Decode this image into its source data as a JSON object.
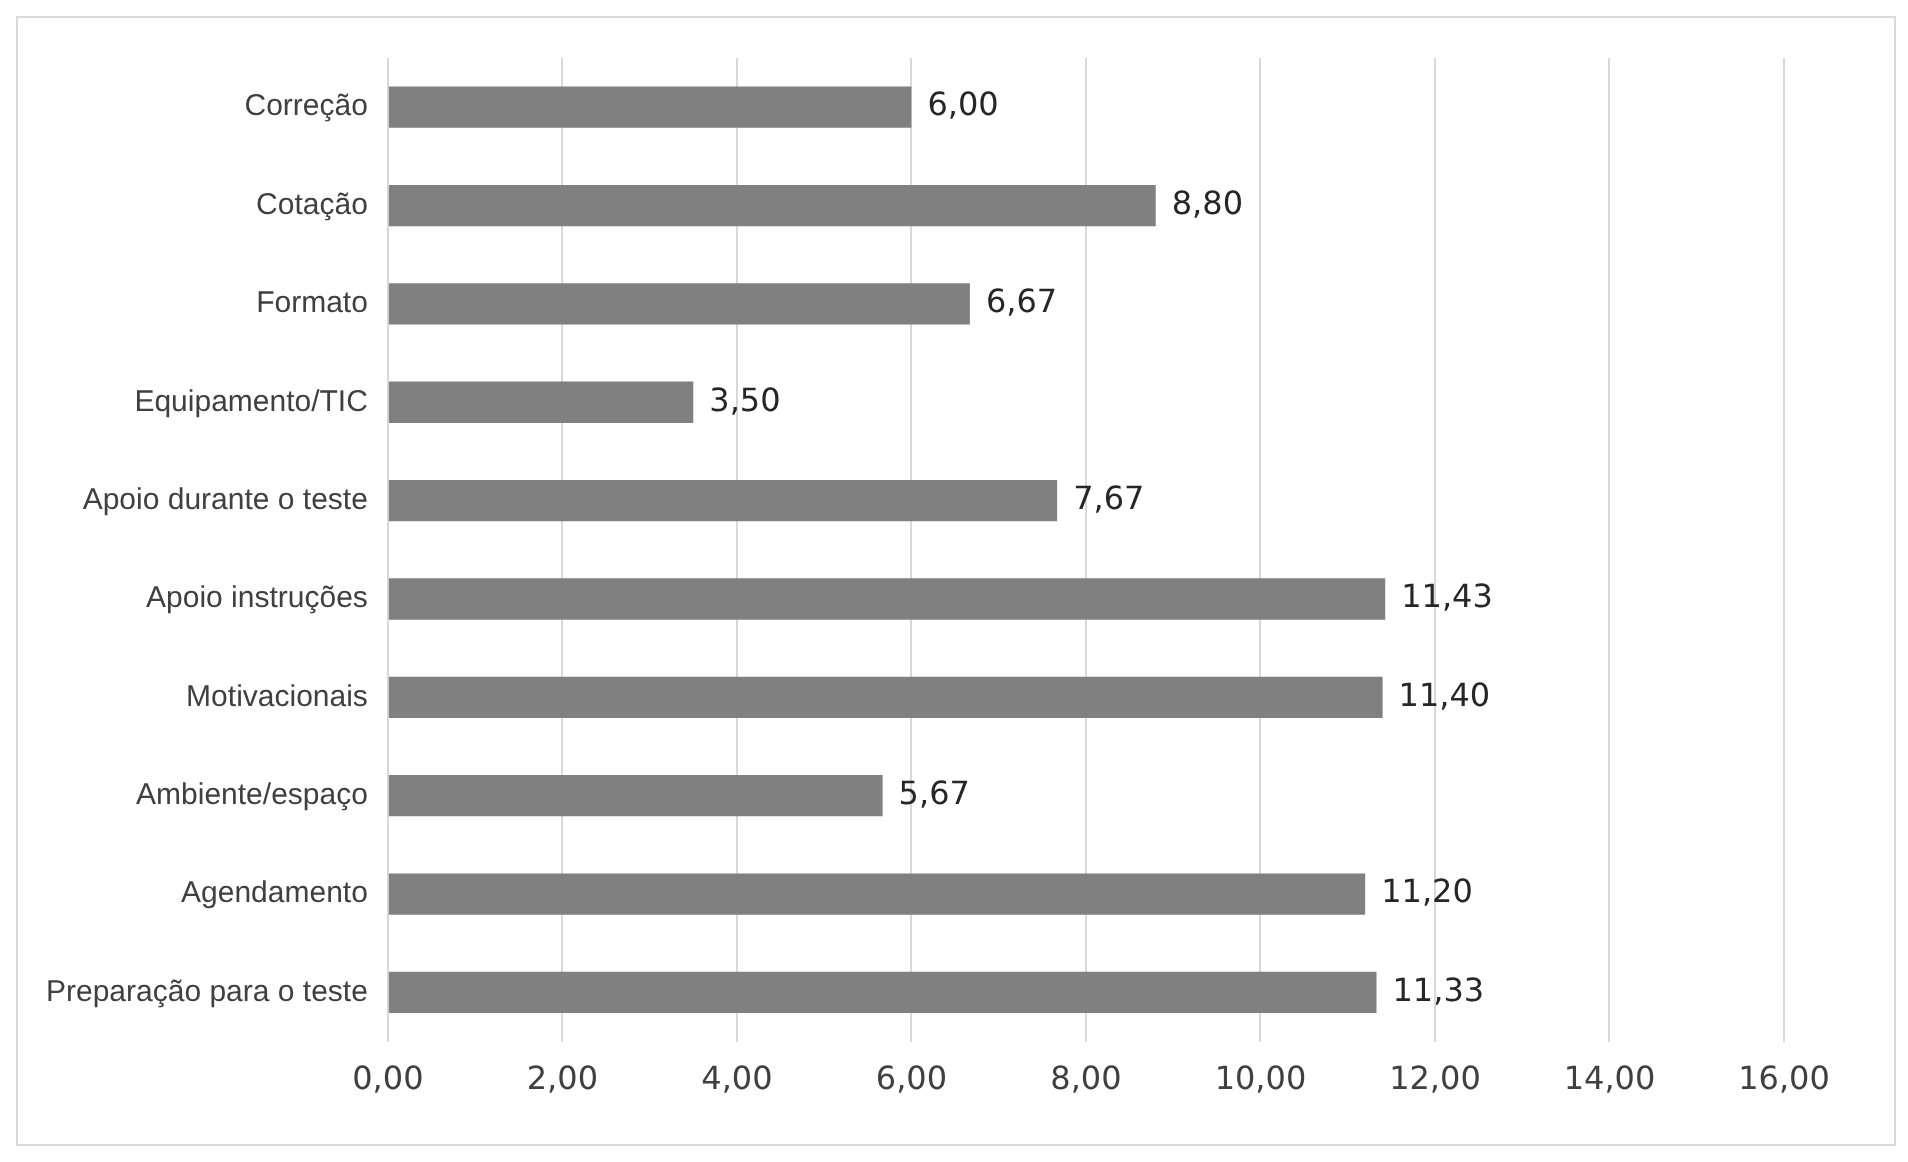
{
  "chart_data": {
    "type": "bar",
    "orientation": "horizontal",
    "categories": [
      "Correção",
      "Cotação",
      "Formato",
      "Equipamento/TIC",
      "Apoio durante o teste",
      "Apoio instruções",
      "Motivacionais",
      "Ambiente/espaço",
      "Agendamento",
      "Preparação para o teste"
    ],
    "values": [
      6.0,
      8.8,
      6.67,
      3.5,
      7.67,
      11.43,
      11.4,
      5.67,
      11.2,
      11.33
    ],
    "value_labels": [
      "6,00",
      "8,80",
      "6,67",
      "3,50",
      "7,67",
      "11,43",
      "11,40",
      "5,67",
      "11,20",
      "11,33"
    ],
    "color": "#808080",
    "xlim": [
      0,
      16
    ],
    "xticks": [
      {
        "value": 0,
        "label": "0,00"
      },
      {
        "value": 2,
        "label": "2,00"
      },
      {
        "value": 4,
        "label": "4,00"
      },
      {
        "value": 6,
        "label": "6,00"
      },
      {
        "value": 8,
        "label": "8,00"
      },
      {
        "value": 10,
        "label": "10,00"
      },
      {
        "value": 12,
        "label": "12,00"
      },
      {
        "value": 14,
        "label": "14,00"
      },
      {
        "value": 16,
        "label": "16,00"
      }
    ],
    "grid": "x",
    "legend": false
  }
}
